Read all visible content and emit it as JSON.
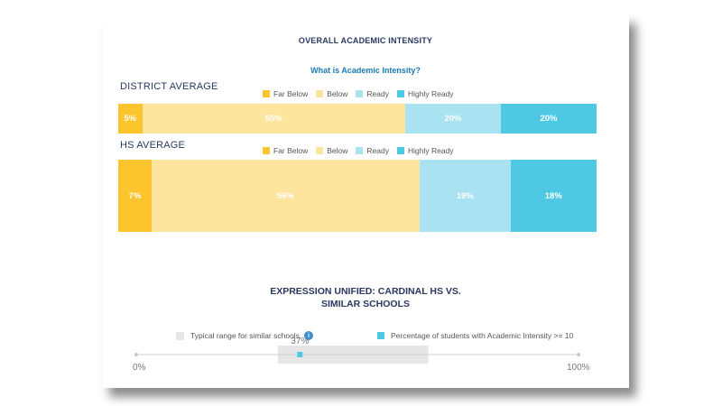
{
  "header": {
    "title": "OVERALL ACADEMIC INTENSITY",
    "link": "What is Academic Intensity?"
  },
  "colors": {
    "far_below": "#fcc52d",
    "below": "#fde59e",
    "ready": "#a9e2f1",
    "highly_ready": "#4fc8e4",
    "typical_range": "#e6e6e6",
    "marker": "#4fc8e4",
    "title": "#2a3760",
    "link": "#1a7ab4"
  },
  "chart_data": [
    {
      "type": "bar",
      "stacked": true,
      "orientation": "horizontal",
      "title": "DISTRICT AVERAGE",
      "legend": [
        "Far Below",
        "Below",
        "Ready",
        "Highly Ready"
      ],
      "series": [
        {
          "name": "Far Below",
          "value": 5,
          "label": "5%"
        },
        {
          "name": "Below",
          "value": 55,
          "label": "55%"
        },
        {
          "name": "Ready",
          "value": 20,
          "label": "20%"
        },
        {
          "name": "Highly Ready",
          "value": 20,
          "label": "20%"
        }
      ]
    },
    {
      "type": "bar",
      "stacked": true,
      "orientation": "horizontal",
      "title": "HS AVERAGE",
      "legend": [
        "Far Below",
        "Below",
        "Ready",
        "Highly Ready"
      ],
      "series": [
        {
          "name": "Far Below",
          "value": 7,
          "label": "7%"
        },
        {
          "name": "Below",
          "value": 56,
          "label": "56%"
        },
        {
          "name": "Ready",
          "value": 19,
          "label": "19%"
        },
        {
          "name": "Highly Ready",
          "value": 18,
          "label": "18%"
        }
      ]
    }
  ],
  "comparison": {
    "title_line1": "EXPRESSION UNIFIED: CARDINAL HS VS.",
    "title_line2": "SIMILAR SCHOOLS",
    "legend_typical": "Typical range for similar schools",
    "info_glyph": "i",
    "legend_percentage": "Percentage of students with Academic Intensity >= 10",
    "value": 37,
    "value_label": "37%",
    "range": [
      32,
      66
    ],
    "axis_min_label": "0%",
    "axis_max_label": "100%"
  }
}
